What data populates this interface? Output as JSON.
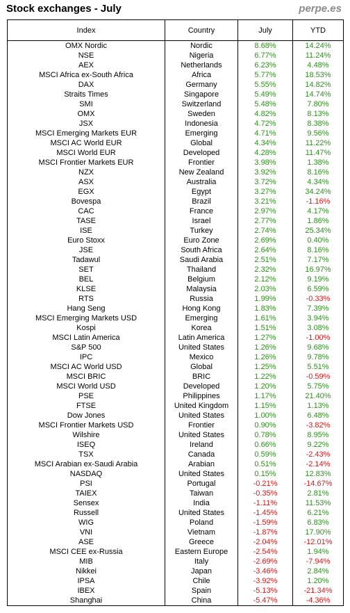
{
  "header": {
    "title": "Stock exchanges - July",
    "brand": "perpe.es"
  },
  "colors": {
    "positive": "#2f8f1f",
    "negative": "#d61a1a"
  },
  "columns": {
    "index": "Index",
    "country": "Country",
    "july": "July",
    "ytd": "YTD"
  },
  "rows": [
    {
      "index": "OMX Nordic",
      "country": "Nordic",
      "july": "8.68%",
      "ytd": "14.24%"
    },
    {
      "index": "NSE",
      "country": "Nigeria",
      "july": "6.77%",
      "ytd": "11.24%"
    },
    {
      "index": "AEX",
      "country": "Netherlands",
      "july": "6.23%",
      "ytd": "4.48%"
    },
    {
      "index": "MSCI Africa ex-South Africa",
      "country": "Africa",
      "july": "5.77%",
      "ytd": "18.53%"
    },
    {
      "index": "DAX",
      "country": "Germany",
      "july": "5.55%",
      "ytd": "14.82%"
    },
    {
      "index": "Straits Times",
      "country": "Singapore",
      "july": "5.49%",
      "ytd": "14.74%"
    },
    {
      "index": "SMI",
      "country": "Switzerland",
      "july": "5.48%",
      "ytd": "7.80%"
    },
    {
      "index": "OMX",
      "country": "Sweden",
      "july": "4.82%",
      "ytd": "8.13%"
    },
    {
      "index": "JSX",
      "country": "Indonesia",
      "july": "4.72%",
      "ytd": "8.38%"
    },
    {
      "index": "MSCI Emerging Markets EUR",
      "country": "Emerging",
      "july": "4.71%",
      "ytd": "9.56%"
    },
    {
      "index": "MSCI AC World EUR",
      "country": "Global",
      "july": "4.34%",
      "ytd": "11.22%"
    },
    {
      "index": "MSCI World EUR",
      "country": "Developed",
      "july": "4.28%",
      "ytd": "11.47%"
    },
    {
      "index": "MSCI Frontier Markets EUR",
      "country": "Frontier",
      "july": "3.98%",
      "ytd": "1.38%"
    },
    {
      "index": "NZX",
      "country": "New Zealand",
      "july": "3.92%",
      "ytd": "8.16%"
    },
    {
      "index": "ASX",
      "country": "Australia",
      "july": "3.72%",
      "ytd": "4.34%"
    },
    {
      "index": "EGX",
      "country": "Egypt",
      "july": "3.27%",
      "ytd": "34.24%"
    },
    {
      "index": "Bovespa",
      "country": "Brazil",
      "july": "3.21%",
      "ytd": "-1.16%"
    },
    {
      "index": "CAC",
      "country": "France",
      "july": "2.97%",
      "ytd": "4.17%"
    },
    {
      "index": "TASE",
      "country": "Israel",
      "july": "2.77%",
      "ytd": "1.86%"
    },
    {
      "index": "ISE",
      "country": "Turkey",
      "july": "2.74%",
      "ytd": "25.34%"
    },
    {
      "index": "Euro Stoxx",
      "country": "Euro Zone",
      "july": "2.69%",
      "ytd": "0.40%"
    },
    {
      "index": "JSE",
      "country": "South Africa",
      "july": "2.64%",
      "ytd": "8.16%"
    },
    {
      "index": "Tadawul",
      "country": "Saudi Arabia",
      "july": "2.51%",
      "ytd": "7.17%"
    },
    {
      "index": "SET",
      "country": "Thailand",
      "july": "2.32%",
      "ytd": "16.97%"
    },
    {
      "index": "BEL",
      "country": "Belgium",
      "july": "2.12%",
      "ytd": "9.19%"
    },
    {
      "index": "KLSE",
      "country": "Malaysia",
      "july": "2.03%",
      "ytd": "6.59%"
    },
    {
      "index": "RTS",
      "country": "Russia",
      "july": "1.99%",
      "ytd": "-0.33%"
    },
    {
      "index": "Hang Seng",
      "country": "Hong Kong",
      "july": "1.83%",
      "ytd": "7.39%"
    },
    {
      "index": "MSCI Emerging Markets USD",
      "country": "Emerging",
      "july": "1.61%",
      "ytd": "3.94%"
    },
    {
      "index": "Kospi",
      "country": "Korea",
      "july": "1.51%",
      "ytd": "3.08%"
    },
    {
      "index": "MSCI Latin America",
      "country": "Latin America",
      "july": "1.27%",
      "ytd": "-1.00%"
    },
    {
      "index": "S&P 500",
      "country": "United States",
      "july": "1.26%",
      "ytd": "9.68%"
    },
    {
      "index": "IPC",
      "country": "Mexico",
      "july": "1.26%",
      "ytd": "9.78%"
    },
    {
      "index": "MSCI AC World USD",
      "country": "Global",
      "july": "1.25%",
      "ytd": "5.51%"
    },
    {
      "index": "MSCI BRIC",
      "country": "BRIC",
      "july": "1.22%",
      "ytd": "-0.59%"
    },
    {
      "index": "MSCI World USD",
      "country": "Developed",
      "july": "1.20%",
      "ytd": "5.75%"
    },
    {
      "index": "PSE",
      "country": "Philippines",
      "july": "1.17%",
      "ytd": "21.40%"
    },
    {
      "index": "FTSE",
      "country": "United Kingdom",
      "july": "1.15%",
      "ytd": "1.13%"
    },
    {
      "index": "Dow Jones",
      "country": "United States",
      "july": "1.00%",
      "ytd": "6.48%"
    },
    {
      "index": "MSCI Frontier Markets USD",
      "country": "Frontier",
      "july": "0.90%",
      "ytd": "-3.82%"
    },
    {
      "index": "Wilshire",
      "country": "United States",
      "july": "0.78%",
      "ytd": "8.95%"
    },
    {
      "index": "ISEQ",
      "country": "Ireland",
      "july": "0.66%",
      "ytd": "9.22%"
    },
    {
      "index": "TSX",
      "country": "Canada",
      "july": "0.59%",
      "ytd": "-2.43%"
    },
    {
      "index": "MSCI Arabian ex-Saudi Arabia",
      "country": "Arabian",
      "july": "0.51%",
      "ytd": "-2.14%"
    },
    {
      "index": "NASDAQ",
      "country": "United States",
      "july": "0.15%",
      "ytd": "12.83%"
    },
    {
      "index": "PSI",
      "country": "Portugal",
      "july": "-0.21%",
      "ytd": "-14.67%"
    },
    {
      "index": "TAIEX",
      "country": "Taiwan",
      "july": "-0.35%",
      "ytd": "2.81%"
    },
    {
      "index": "Sensex",
      "country": "India",
      "july": "-1.11%",
      "ytd": "11.53%"
    },
    {
      "index": "Russell",
      "country": "United States",
      "july": "-1.45%",
      "ytd": "6.21%"
    },
    {
      "index": "WIG",
      "country": "Poland",
      "july": "-1.59%",
      "ytd": "6.83%"
    },
    {
      "index": "VNI",
      "country": "Vietnam",
      "july": "-1.87%",
      "ytd": "17.90%"
    },
    {
      "index": "ASE",
      "country": "Greece",
      "july": "-2.04%",
      "ytd": "-12.01%"
    },
    {
      "index": "MSCI CEE ex-Russia",
      "country": "Eastern Europe",
      "july": "-2.54%",
      "ytd": "1.94%"
    },
    {
      "index": "MIB",
      "country": "Italy",
      "july": "-2.69%",
      "ytd": "-7.94%"
    },
    {
      "index": "Nikkei",
      "country": "Japan",
      "july": "-3.46%",
      "ytd": "2.84%"
    },
    {
      "index": "IPSA",
      "country": "Chile",
      "july": "-3.92%",
      "ytd": "1.20%"
    },
    {
      "index": "IBEX",
      "country": "Spain",
      "july": "-5.13%",
      "ytd": "-21.34%"
    },
    {
      "index": "Shanghai",
      "country": "China",
      "july": "-5.47%",
      "ytd": "-4.36%"
    }
  ]
}
